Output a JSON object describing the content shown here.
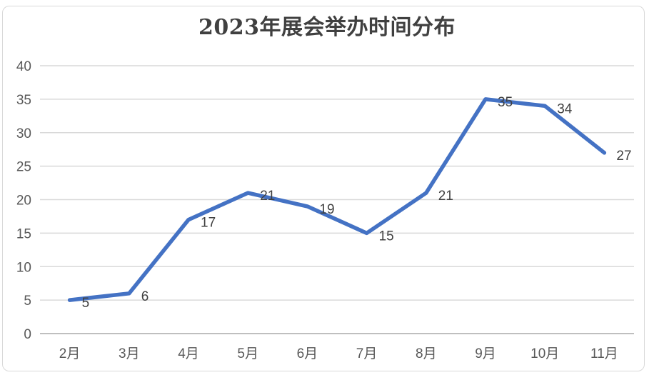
{
  "chart_data": {
    "type": "line",
    "title": "2023年展会举办时间分布",
    "categories": [
      "2月",
      "3月",
      "4月",
      "5月",
      "6月",
      "7月",
      "8月",
      "9月",
      "10月",
      "11月"
    ],
    "values": [
      5,
      6,
      17,
      21,
      19,
      15,
      21,
      35,
      34,
      27
    ],
    "xlabel": "",
    "ylabel": "",
    "ylim": [
      0,
      40
    ],
    "ytick_step": 5,
    "yticks": [
      0,
      5,
      10,
      15,
      20,
      25,
      30,
      35,
      40
    ],
    "grid": true,
    "legend_position": "none",
    "data_label_position": "right",
    "colors": {
      "line": "#4472C4",
      "gridline": "#D9D9D9",
      "axis_line": "#BFBFBF",
      "axis_label": "#595959",
      "data_label": "#404040",
      "title": "#404040",
      "frame_border": "#D9D9D9",
      "background": "#FFFFFF"
    }
  }
}
